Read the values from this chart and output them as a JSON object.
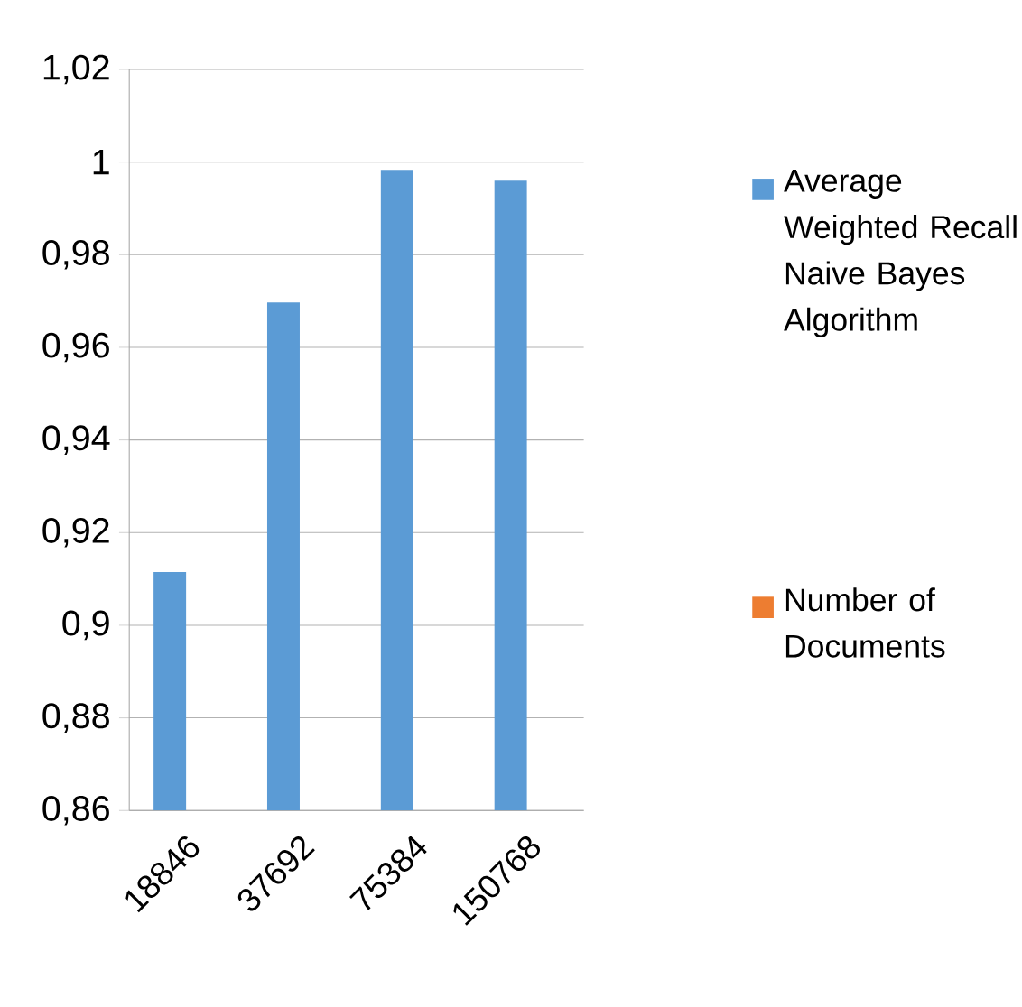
{
  "chart_data": {
    "type": "bar",
    "categories": [
      "18846",
      "37692",
      "75384",
      "150768"
    ],
    "series": [
      {
        "name": "Average Weighted Recall Naive Bayes Algorithm",
        "color": "#5b9bd5",
        "values": [
          0.9115,
          0.9697,
          0.9983,
          0.996
        ]
      },
      {
        "name": "Number of Documents",
        "color": "#ed7d31",
        "values": [
          null,
          null,
          null,
          null
        ]
      }
    ],
    "ylim": [
      0.86,
      1.02
    ],
    "yticks": [
      {
        "value": 0.86,
        "label": "0,86"
      },
      {
        "value": 0.88,
        "label": "0,88"
      },
      {
        "value": 0.9,
        "label": "0,9"
      },
      {
        "value": 0.92,
        "label": "0,92"
      },
      {
        "value": 0.94,
        "label": "0,94"
      },
      {
        "value": 0.96,
        "label": "0,96"
      },
      {
        "value": 0.98,
        "label": "0,98"
      },
      1,
      {
        "value": 1.02,
        "label": "1,02"
      }
    ],
    "grid": "y",
    "legend": "right"
  }
}
